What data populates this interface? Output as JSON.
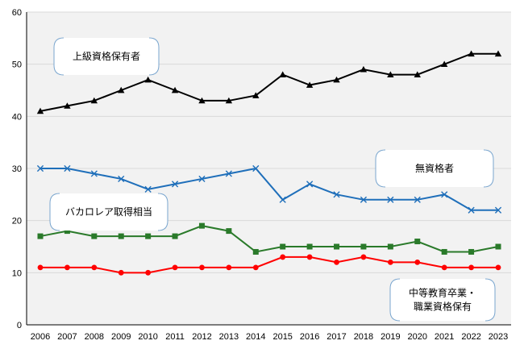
{
  "chart_data": {
    "type": "line",
    "title": "",
    "xlabel": "",
    "ylabel": "",
    "ylim": [
      0,
      60
    ],
    "yticks": [
      0,
      10,
      20,
      30,
      40,
      50,
      60
    ],
    "grid": true,
    "legend": "none",
    "categories": [
      "2006",
      "2007",
      "2008",
      "2009",
      "2010",
      "2011",
      "2012",
      "2013",
      "2014",
      "2015",
      "2016",
      "2017",
      "2018",
      "2019",
      "2020",
      "2021",
      "2022",
      "2023"
    ],
    "series": [
      {
        "values": [
          41,
          42,
          43,
          45,
          47,
          45,
          43,
          43,
          44,
          48,
          46,
          47,
          49,
          48,
          48,
          50,
          52,
          52
        ],
        "color": "#000000",
        "marker": "triangle",
        "label": [
          "上級資格保有者"
        ]
      },
      {
        "values": [
          30,
          30,
          29,
          28,
          26,
          27,
          28,
          29,
          30,
          24,
          27,
          25,
          24,
          24,
          24,
          25,
          22,
          22
        ],
        "color": "#1f6fba",
        "marker": "x",
        "label": [
          "無資格者"
        ]
      },
      {
        "values": [
          17,
          18,
          17,
          17,
          17,
          17,
          19,
          18,
          14,
          15,
          15,
          15,
          15,
          15,
          16,
          14,
          14,
          15
        ],
        "color": "#2a7a2a",
        "marker": "square",
        "label": [
          "バカロレア取得相当"
        ]
      },
      {
        "values": [
          11,
          11,
          11,
          10,
          10,
          11,
          11,
          11,
          11,
          13,
          13,
          12,
          13,
          12,
          12,
          11,
          11,
          11
        ],
        "color": "#ff0000",
        "marker": "circle",
        "label": [
          "中等教育卒業・",
          "職業資格保有"
        ]
      }
    ]
  }
}
